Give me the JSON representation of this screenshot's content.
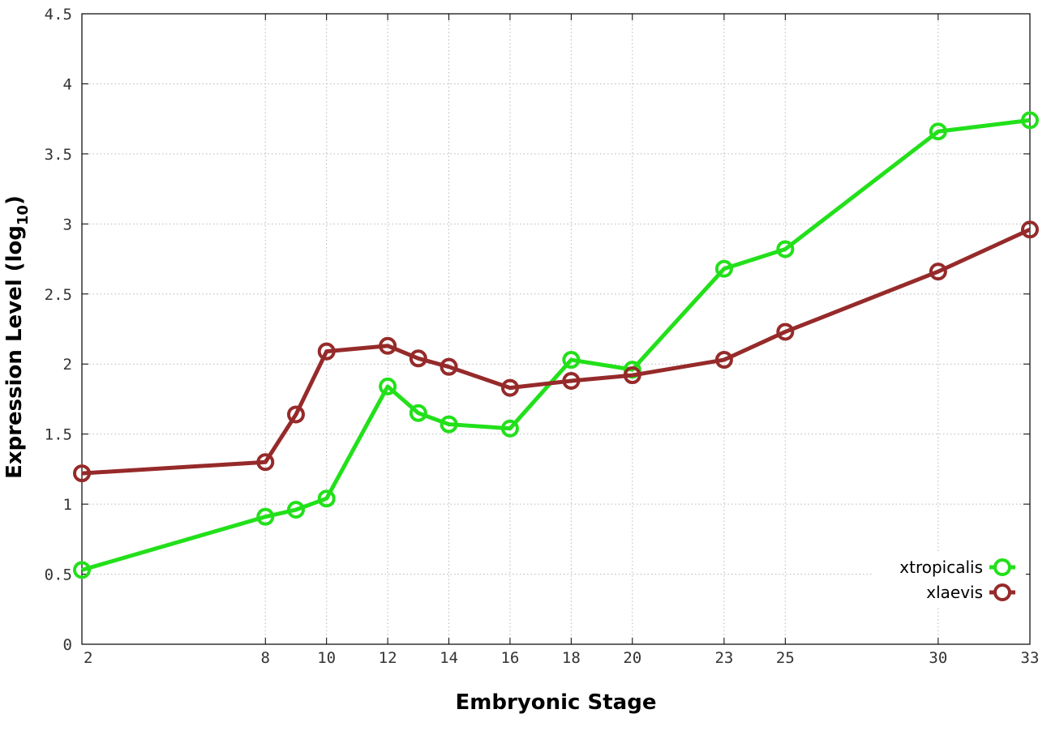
{
  "chart_data": {
    "type": "line",
    "xlabel": "Embryonic Stage",
    "ylabel_main": "Expression Level (log",
    "ylabel_sub": "10",
    "ylabel_close": ")",
    "xlim": [
      2,
      33
    ],
    "ylim": [
      0,
      4.5
    ],
    "x_ticks": [
      2,
      8,
      10,
      12,
      14,
      16,
      18,
      20,
      23,
      25,
      30,
      33
    ],
    "y_ticks": [
      {
        "value": 0,
        "label": "0"
      },
      {
        "value": 0.5,
        "label": "0.5"
      },
      {
        "value": 1,
        "label": "1"
      },
      {
        "value": 1.5,
        "label": "1.5"
      },
      {
        "value": 2,
        "label": "2"
      },
      {
        "value": 2.5,
        "label": "2.5"
      },
      {
        "value": 3,
        "label": "3"
      },
      {
        "value": 3.5,
        "label": "3.5"
      },
      {
        "value": 4,
        "label": "4"
      },
      {
        "value": 4.5,
        "label": "4.5"
      }
    ],
    "grid": true,
    "legend_position": "bottom-right",
    "series": [
      {
        "name": "xtropicalis",
        "color": "#22e01a",
        "points": [
          {
            "x": 2,
            "y": 0.53
          },
          {
            "x": 8,
            "y": 0.91
          },
          {
            "x": 9,
            "y": 0.96
          },
          {
            "x": 10,
            "y": 1.04
          },
          {
            "x": 12,
            "y": 1.84
          },
          {
            "x": 13,
            "y": 1.65
          },
          {
            "x": 14,
            "y": 1.57
          },
          {
            "x": 16,
            "y": 1.54
          },
          {
            "x": 18,
            "y": 2.03
          },
          {
            "x": 20,
            "y": 1.96
          },
          {
            "x": 23,
            "y": 2.68
          },
          {
            "x": 25,
            "y": 2.82
          },
          {
            "x": 30,
            "y": 3.66
          },
          {
            "x": 33,
            "y": 3.74
          }
        ]
      },
      {
        "name": "xlaevis",
        "color": "#962a2a",
        "points": [
          {
            "x": 2,
            "y": 1.22
          },
          {
            "x": 8,
            "y": 1.3
          },
          {
            "x": 9,
            "y": 1.64
          },
          {
            "x": 10,
            "y": 2.09
          },
          {
            "x": 12,
            "y": 2.13
          },
          {
            "x": 13,
            "y": 2.04
          },
          {
            "x": 14,
            "y": 1.98
          },
          {
            "x": 16,
            "y": 1.83
          },
          {
            "x": 18,
            "y": 1.88
          },
          {
            "x": 20,
            "y": 1.92
          },
          {
            "x": 23,
            "y": 2.03
          },
          {
            "x": 25,
            "y": 2.23
          },
          {
            "x": 30,
            "y": 2.66
          },
          {
            "x": 33,
            "y": 2.96
          }
        ]
      }
    ]
  }
}
